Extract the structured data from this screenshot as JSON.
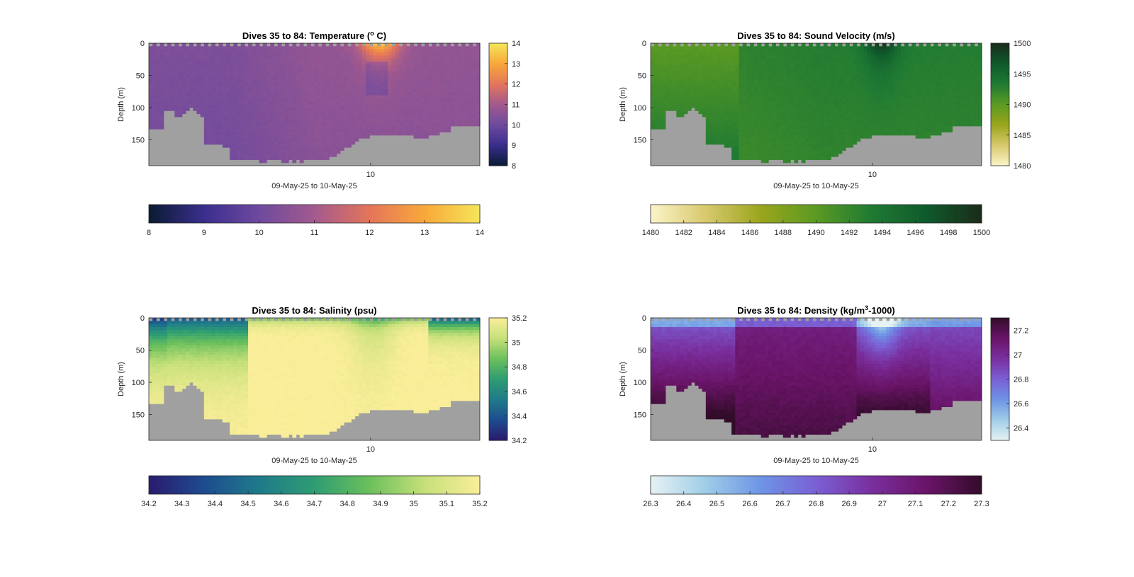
{
  "chart_data": [
    {
      "type": "heatmap",
      "title": "Dives 35 to 84: Temperature (",
      "title_sup": "o",
      "title_suffix": " C)",
      "xlabel": "09-May-25 to 10-May-25",
      "ylabel": "Depth (m)",
      "ylim": [
        0,
        190
      ],
      "y_ticks": [
        "0",
        "50",
        "100",
        "150"
      ],
      "x_ticks": [
        "10"
      ],
      "x_tick_fraction": 0.67,
      "clim": [
        8,
        14
      ],
      "colormap": [
        "#0b1a33",
        "#3a2e8e",
        "#6e4a9e",
        "#a25a8e",
        "#e4755b",
        "#f8a83a",
        "#f5e65a"
      ],
      "side_colorbar_ticks": [
        "8",
        "9",
        "10",
        "11",
        "12",
        "13",
        "14"
      ],
      "bottom_colorbar_ticks": [
        "8",
        "9",
        "10",
        "11",
        "12",
        "13",
        "14"
      ],
      "field": "temperature",
      "no_data_color": "#a0a0a0"
    },
    {
      "type": "heatmap",
      "title": "Dives 35 to 84: Sound Velocity (m/s)",
      "title_sup": "",
      "title_suffix": "",
      "xlabel": "09-May-25 to 10-May-25",
      "ylabel": "Depth (m)",
      "ylim": [
        0,
        190
      ],
      "y_ticks": [
        "0",
        "50",
        "100",
        "150"
      ],
      "x_ticks": [
        "10"
      ],
      "x_tick_fraction": 0.67,
      "clim": [
        1480,
        1500
      ],
      "colormap": [
        "#fbf4c8",
        "#d8c96d",
        "#9aa51c",
        "#5b9a23",
        "#1f7a33",
        "#0f5a2c",
        "#1b2b1a"
      ],
      "side_colorbar_ticks": [
        "1480",
        "1485",
        "1490",
        "1495",
        "1500"
      ],
      "bottom_colorbar_ticks": [
        "1480",
        "1482",
        "1484",
        "1486",
        "1488",
        "1490",
        "1492",
        "1494",
        "1496",
        "1498",
        "1500"
      ],
      "field": "sound",
      "no_data_color": "#a0a0a0"
    },
    {
      "type": "heatmap",
      "title": "Dives 35 to 84: Salinity (psu)",
      "title_sup": "",
      "title_suffix": "",
      "xlabel": "09-May-25 to 10-May-25",
      "ylabel": "Depth (m)",
      "ylim": [
        0,
        190
      ],
      "y_ticks": [
        "0",
        "50",
        "100",
        "150"
      ],
      "x_ticks": [
        "10"
      ],
      "x_tick_fraction": 0.67,
      "clim": [
        34.2,
        35.2
      ],
      "colormap": [
        "#2a1b6e",
        "#1d4c8f",
        "#1f7a8a",
        "#2e9d73",
        "#6cc05c",
        "#c6e07a",
        "#fbee9a"
      ],
      "side_colorbar_ticks": [
        "34.2",
        "34.4",
        "34.6",
        "34.8",
        "35",
        "35.2"
      ],
      "bottom_colorbar_ticks": [
        "34.2",
        "34.3",
        "34.4",
        "34.5",
        "34.6",
        "34.7",
        "34.8",
        "34.9",
        "35",
        "35.1",
        "35.2"
      ],
      "field": "salinity",
      "no_data_color": "#a0a0a0"
    },
    {
      "type": "heatmap",
      "title": "Dives 35 to 84: Density (kg/m",
      "title_sup": "3",
      "title_suffix": "-1000)",
      "xlabel": "09-May-25 to 10-May-25",
      "ylabel": "Depth (m)",
      "ylim": [
        0,
        190
      ],
      "y_ticks": [
        "0",
        "50",
        "100",
        "150"
      ],
      "x_ticks": [
        "10"
      ],
      "x_tick_fraction": 0.67,
      "clim": [
        26.3,
        27.3
      ],
      "colormap": [
        "#e6f2f3",
        "#9fcde8",
        "#6e94e6",
        "#7a60d4",
        "#7a2f9e",
        "#6a1468",
        "#330c2a"
      ],
      "side_colorbar_ticks": [
        "26.4",
        "26.6",
        "26.8",
        "27",
        "27.2"
      ],
      "bottom_colorbar_ticks": [
        "26.3",
        "26.4",
        "26.5",
        "26.6",
        "26.7",
        "26.8",
        "26.9",
        "27",
        "27.1",
        "27.2",
        "27.3"
      ],
      "field": "density",
      "no_data_color": "#a0a0a0"
    }
  ]
}
